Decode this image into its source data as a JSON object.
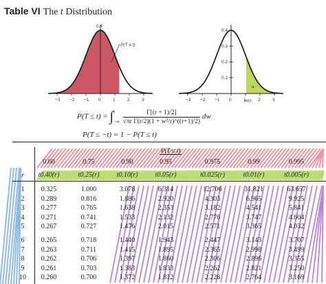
{
  "title": {
    "label": "Table VI",
    "rest_prefix": "The",
    "rest_var": "t",
    "rest_suffix": "Distribution"
  },
  "left_plot": {
    "y_top": "0.4",
    "label": "P(T ≤ t)",
    "x_ticks": [
      "−3",
      "−2",
      "−1",
      "0",
      "1",
      "2",
      "3"
    ]
  },
  "right_plot": {
    "y_ticks": [
      "0.4",
      "0.3",
      "0.2",
      "0.1"
    ],
    "alpha": "α",
    "t_label": "tα(r)",
    "x_ticks": [
      "−3",
      "−2",
      "−1",
      "0",
      "1",
      "2",
      "3"
    ]
  },
  "formula": {
    "lhs": "P(T ≤ t) =",
    "upper": "t",
    "lower": "−∞",
    "numerator": "Γ[(r + 1)/2]",
    "denominator": "√πr Γ(r/2)(1 + w²/r)^((r+1)/2)",
    "dw": "dw",
    "line2": "P(T ≤ −t) = 1 − P(T ≤ t)"
  },
  "table": {
    "prob_header": "P(T ≤ t)",
    "probs": [
      "0.60",
      "0.75",
      "0.90",
      "0.95",
      "0.975",
      "0.99",
      "0.995"
    ],
    "r_label": "r",
    "t_headers": [
      "t0.40(r)",
      "t0.25(r)",
      "t0.10(r)",
      "t0.05(r)",
      "t0.025(r)",
      "t0.01(r)",
      "t0.005(r)"
    ],
    "rows": [
      {
        "r": "1",
        "v": [
          "0.325",
          "1.000",
          "3.078",
          "6.314",
          "12.706",
          "31.821",
          "63.657"
        ]
      },
      {
        "r": "2",
        "v": [
          "0.289",
          "0.816",
          "1.886",
          "2.920",
          "4.303",
          "6.965",
          "9.925"
        ]
      },
      {
        "r": "3",
        "v": [
          "0.277",
          "0.765",
          "1.638",
          "2.353",
          "3.182",
          "4.541",
          "5.841"
        ]
      },
      {
        "r": "4",
        "v": [
          "0.271",
          "0.741",
          "1.533",
          "2.132",
          "2.776",
          "3.747",
          "4.604"
        ]
      },
      {
        "r": "5",
        "v": [
          "0.267",
          "0.727",
          "1.476",
          "2.015",
          "2.571",
          "3.365",
          "4.032"
        ]
      },
      {
        "r": "6",
        "v": [
          "0.265",
          "0.718",
          "1.440",
          "1.943",
          "2.447",
          "3.143",
          "3.707"
        ]
      },
      {
        "r": "7",
        "v": [
          "0.263",
          "0.711",
          "1.415",
          "1.895",
          "2.365",
          "2.998",
          "3.499"
        ]
      },
      {
        "r": "8",
        "v": [
          "0.262",
          "0.706",
          "1.397",
          "1.860",
          "2.306",
          "2.896",
          "3.355"
        ]
      },
      {
        "r": "9",
        "v": [
          "0.261",
          "0.703",
          "1.383",
          "1.833",
          "2.262",
          "2.821",
          "3.250"
        ]
      },
      {
        "r": "10",
        "v": [
          "0.260",
          "0.700",
          "1.372",
          "1.812",
          "2.228",
          "2.764",
          "3.169"
        ]
      }
    ]
  },
  "colors": {
    "red_shade": "#c23a4a",
    "green_shade": "#b6d14c",
    "purple_scribble": "#9b4fc9",
    "blue_scribble": "#6aa4d8",
    "red_scribble": "#e6707f",
    "green_scribble": "#a6d24a"
  }
}
